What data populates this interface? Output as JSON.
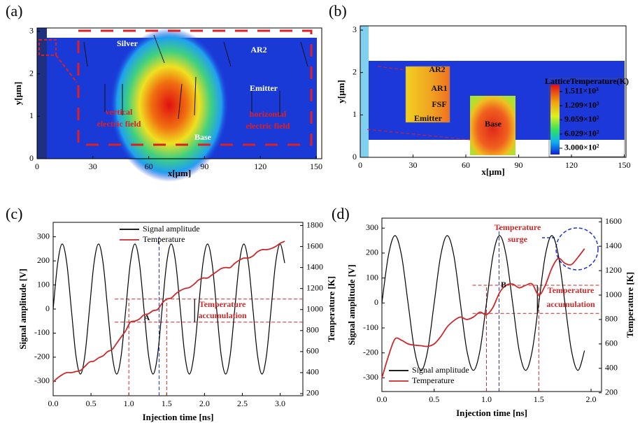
{
  "chart_data": [
    {
      "type": "field-map",
      "label": "(a)",
      "xlabel": "x[μm]",
      "ylabel": "y[μm]",
      "xlim": [
        0,
        153
      ],
      "xticks": [
        0,
        30,
        60,
        90,
        120,
        150
      ],
      "ylim": [
        0,
        3.08
      ],
      "yticks": [
        0,
        1,
        2,
        3
      ],
      "annotations": [
        "Silver",
        "AR2",
        "Emitter",
        "vertical",
        "electric field",
        "horizontal",
        "electric field",
        "Base"
      ]
    },
    {
      "type": "field-map",
      "label": "(b)",
      "xlabel": "x[μm]",
      "ylabel": "y[μm]",
      "xlim": [
        0,
        151
      ],
      "xticks": [
        0,
        30,
        60,
        90,
        120,
        150
      ],
      "ylim": [
        0,
        3.1
      ],
      "yticks": [
        0,
        1,
        2,
        3
      ],
      "annotations": [
        "AR2",
        "AR1",
        "FSF",
        "Emitter",
        "Base"
      ],
      "colorbar": {
        "title": "LatticeTemperature(K)",
        "lim": [
          165,
          1660
        ],
        "ticks": [
          {
            "value": 1511,
            "label": "1.511×10³"
          },
          {
            "value": 1209,
            "label": "1.209×10³"
          },
          {
            "value": 905.9,
            "label": "9.059×10²"
          },
          {
            "value": 602.9,
            "label": "6.029×10²"
          },
          {
            "value": 300,
            "label": "3.000×10²"
          }
        ]
      }
    },
    {
      "type": "line",
      "label": "(c)",
      "xlabel": "Injection time [ns]",
      "ylabel": "Signal amplitude [V]",
      "y2label": "Temperature [K]",
      "xlim": [
        0,
        3.3
      ],
      "xticks": [
        {
          "value": 0,
          "label": "0.0"
        },
        0.5,
        {
          "value": 1,
          "label": "1.0"
        },
        1.5,
        {
          "value": 2,
          "label": "2.0"
        },
        2.5,
        {
          "value": 3,
          "label": "3.0"
        }
      ],
      "ylim": [
        -360,
        360
      ],
      "yticks": [
        -300,
        -200,
        -100,
        0,
        100,
        200,
        300
      ],
      "y2lim": [
        180,
        1830
      ],
      "y2ticks": [
        200,
        400,
        600,
        800,
        1000,
        1200,
        1400,
        1600,
        1800
      ],
      "legend": "upper left",
      "x": [
        0,
        0.06,
        0.12,
        0.18,
        0.24,
        0.3,
        0.36,
        0.42,
        0.48,
        0.54,
        0.6,
        0.66,
        0.72,
        0.78,
        0.84,
        0.9,
        0.96,
        1.02,
        1.08,
        1.14,
        1.2,
        1.26,
        1.32,
        1.38,
        1.44,
        1.5,
        1.56,
        1.62,
        1.68,
        1.74,
        1.8,
        1.86,
        1.92,
        1.98,
        2.04,
        2.1,
        2.16,
        2.22,
        2.28,
        2.34,
        2.4,
        2.46,
        2.52,
        2.58,
        2.64,
        2.7,
        2.76,
        2.82,
        2.88,
        2.94,
        3.0,
        3.06
      ],
      "series": [
        {
          "name": "Signal amplitude",
          "color": "#000000",
          "values": [
            0,
            191,
            270,
            191,
            0,
            -191,
            -270,
            -191,
            0,
            191,
            270,
            191,
            0,
            -191,
            -270,
            -191,
            0,
            191,
            270,
            191,
            0,
            -191,
            -270,
            -191,
            0,
            191,
            270,
            191,
            0,
            -191,
            -270,
            -191,
            0,
            191,
            270,
            191,
            0,
            -191,
            -270,
            -191,
            0,
            191,
            270,
            191,
            0,
            -191,
            -270,
            -191,
            0,
            191,
            270,
            191
          ]
        },
        {
          "name": "Temperature",
          "color": "#cc2a2a",
          "axis": "y2",
          "values": [
            310,
            350,
            380,
            400,
            400,
            410,
            420,
            460,
            500,
            510,
            540,
            560,
            600,
            620,
            680,
            740,
            800,
            880,
            890,
            910,
            950,
            960,
            990,
            1000,
            1060,
            1100,
            1110,
            1150,
            1180,
            1200,
            1210,
            1240,
            1280,
            1300,
            1300,
            1330,
            1360,
            1390,
            1400,
            1400,
            1440,
            1470,
            1490,
            1490,
            1510,
            1550,
            1570,
            1570,
            1580,
            1600,
            1630,
            1650
          ]
        }
      ],
      "reference_lines": {
        "x": [
          1.0,
          1.4,
          1.5
        ],
        "y2": [
          880,
          1100
        ]
      },
      "annotations": [
        "A",
        "Temperature",
        "accumulation"
      ]
    },
    {
      "type": "line",
      "label": "(d)",
      "xlabel": "Injection time [ns]",
      "ylabel": "Signal amplitude [V]",
      "y2label": "Temperature [K]",
      "xlim": [
        0,
        2.1
      ],
      "xticks": [
        {
          "value": 0,
          "label": "0.0"
        },
        0.5,
        {
          "value": 1,
          "label": "1.0"
        },
        1.5,
        {
          "value": 2,
          "label": "2.0"
        }
      ],
      "ylim": [
        -355,
        340
      ],
      "yticks": [
        -300,
        -200,
        -100,
        0,
        100,
        200,
        300
      ],
      "y2lim": [
        210,
        1630
      ],
      "y2ticks": [
        200,
        400,
        600,
        800,
        1000,
        1200,
        1400,
        1600
      ],
      "legend": "lower left",
      "x": [
        0,
        0.0625,
        0.125,
        0.1875,
        0.25,
        0.3125,
        0.375,
        0.4375,
        0.5,
        0.5625,
        0.625,
        0.6875,
        0.75,
        0.8125,
        0.875,
        0.9375,
        1.0,
        1.0625,
        1.125,
        1.1875,
        1.25,
        1.3125,
        1.375,
        1.4375,
        1.5,
        1.5625,
        1.625,
        1.6875,
        1.75,
        1.8125,
        1.875,
        1.9375
      ],
      "series": [
        {
          "name": "Signal amplitude",
          "color": "#000000",
          "values": [
            0,
            191,
            270,
            191,
            0,
            -191,
            -270,
            -191,
            0,
            191,
            270,
            191,
            0,
            -191,
            -270,
            -191,
            0,
            191,
            270,
            191,
            0,
            -191,
            -270,
            -191,
            0,
            191,
            270,
            191,
            0,
            -191,
            -270,
            -191
          ]
        },
        {
          "name": "Temperature",
          "color": "#cc2a2a",
          "axis": "y2",
          "values": [
            320,
            500,
            640,
            630,
            600,
            590,
            585,
            580,
            600,
            660,
            740,
            790,
            820,
            800,
            820,
            860,
            840,
            900,
            1020,
            1080,
            1090,
            1060,
            1080,
            1090,
            1000,
            1080,
            1220,
            1300,
            1260,
            1250,
            1310,
            1380
          ]
        }
      ],
      "reference_lines": {
        "x": [
          1.0,
          1.12,
          1.5
        ],
        "y2": [
          850,
          1080
        ]
      },
      "annotations": [
        "Temperature",
        "surge",
        "B",
        "Temperature",
        "accumulation"
      ]
    }
  ]
}
